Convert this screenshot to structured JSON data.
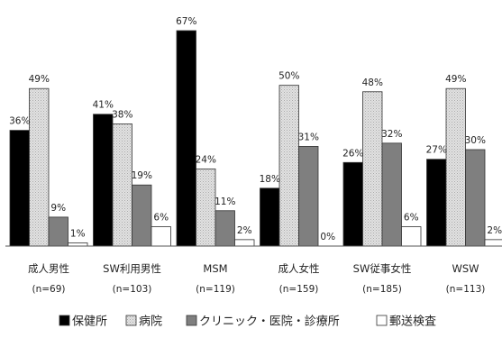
{
  "chart_data": {
    "type": "bar",
    "title": "",
    "xlabel": "",
    "ylabel": "",
    "ylim": [
      0,
      70
    ],
    "grid": false,
    "legend_position": "bottom",
    "categories": [
      "成人男性",
      "SW利用男性",
      "MSM",
      "成人女性",
      "SW従事女性",
      "WSW"
    ],
    "sample_sizes": [
      "(n=69)",
      "(n=103)",
      "(n=119)",
      "(n=159)",
      "(n=185)",
      "(n=113)"
    ],
    "series": [
      {
        "name": "保健所",
        "values": [
          36,
          41,
          67,
          18,
          26,
          27
        ],
        "labels": [
          "36%",
          "41%",
          "67%",
          "18%",
          "26%",
          "27%"
        ],
        "color": "#000000"
      },
      {
        "name": "病院",
        "values": [
          49,
          38,
          24,
          50,
          48,
          49
        ],
        "labels": [
          "49%",
          "38%",
          "24%",
          "50%",
          "48%",
          "49%"
        ],
        "color": "#d2d2d2"
      },
      {
        "name": "クリニック・医院・診療所",
        "values": [
          9,
          19,
          11,
          31,
          32,
          30
        ],
        "labels": [
          "9%",
          "19%",
          "11%",
          "31%",
          "32%",
          "30%"
        ],
        "color": "#7f7f7f"
      },
      {
        "name": "郵送検査",
        "values": [
          1,
          6,
          2,
          0,
          6,
          2
        ],
        "labels": [
          "1%",
          "6%",
          "2%",
          "0%",
          "6%",
          "2%"
        ],
        "color": "#ffffff"
      }
    ]
  }
}
